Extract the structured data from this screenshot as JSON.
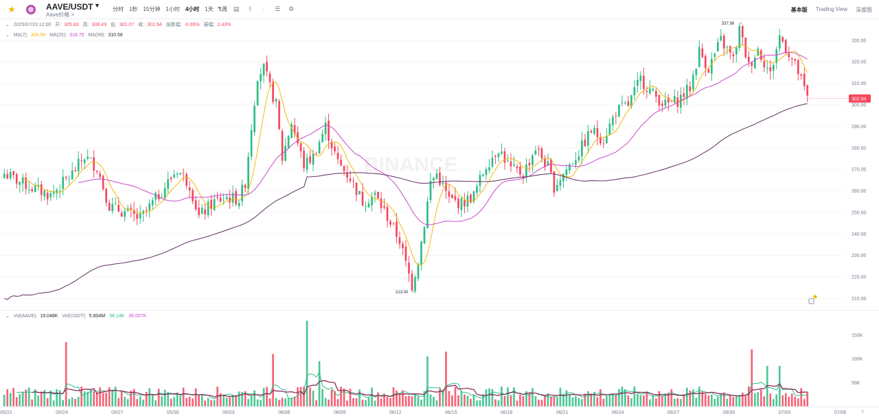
{
  "header": {
    "pair": "AAVE/USDT",
    "subtitle": "Aave价格 >",
    "intervals": [
      "分时",
      "1秒",
      "15分钟",
      "1小时",
      "4小时",
      "1天",
      "1周"
    ],
    "active_interval": "4小时",
    "views": [
      "基本版",
      "Trading View",
      "深度图"
    ],
    "active_view": "基本版",
    "tool_icons": [
      "indicator-icon",
      "draw-line-icon",
      "candle-type-icon",
      "layout-icon",
      "settings-icon"
    ]
  },
  "ohlc": {
    "date": "2025/07/23 12:00",
    "open_label": "开:",
    "open": "305.83",
    "high_label": "高:",
    "high": "308.49",
    "low_label": "低:",
    "low": "301.07",
    "close_label": "收:",
    "close": "302.94",
    "change_label": "涨跌幅:",
    "change": "-0.95%",
    "amp_label": "振幅:",
    "amp": "2.43%"
  },
  "ma": {
    "ma7_label": "MA(7):",
    "ma7": "306.96",
    "ma25_label": "MA(25):",
    "ma25": "318.75",
    "ma99_label": "MA(99):",
    "ma99": "310.56"
  },
  "vol": {
    "base_label": "Vol(AAVE):",
    "base": "19.048K",
    "quote_label": "Vol(USDT):",
    "quote": "5.804M",
    "v1": "38.14K",
    "v2": "36.007K"
  },
  "watermark": "BINANCE",
  "colors": {
    "up": "#2ebd85",
    "down": "#f6465d",
    "ma7": "#f0b90b",
    "ma25": "#c848c8",
    "ma99": "#6c3f6c",
    "vol_ma1": "#2ebd85",
    "vol_ma2": "#8b2a57"
  },
  "chart_data": {
    "type": "candlestick",
    "interval": "4h",
    "x_tick_labels": [
      "05/21",
      "05/24",
      "05/27",
      "05/30",
      "06/03",
      "06/06",
      "06/09",
      "06/12",
      "06/15",
      "06/18",
      "06/21",
      "06/24",
      "06/27",
      "06/30",
      "07/03",
      "07/06",
      "07/09",
      "07/12",
      "07/15",
      "07/18",
      "07/21",
      "07/24"
    ],
    "y_tick_labels": [
      "210.00",
      "220.00",
      "230.00",
      "240.00",
      "250.00",
      "260.00",
      "270.00",
      "280.00",
      "290.00",
      "300.00",
      "310.00",
      "320.00",
      "330.00"
    ],
    "ylim": [
      206,
      336
    ],
    "last_price": "302.94",
    "high_annotation": "337.98",
    "low_annotation": "213.00",
    "price_keypoints": [
      [
        0,
        268
      ],
      [
        8,
        262
      ],
      [
        15,
        258
      ],
      [
        22,
        268
      ],
      [
        26,
        276
      ],
      [
        30,
        271
      ],
      [
        34,
        253
      ],
      [
        44,
        247
      ],
      [
        50,
        258
      ],
      [
        56,
        270
      ],
      [
        60,
        263
      ],
      [
        63,
        248
      ],
      [
        68,
        255
      ],
      [
        72,
        257
      ],
      [
        76,
        256
      ],
      [
        78,
        264
      ],
      [
        80,
        290
      ],
      [
        82,
        314
      ],
      [
        84,
        317
      ],
      [
        86,
        308
      ],
      [
        88,
        300
      ],
      [
        90,
        275
      ],
      [
        93,
        292
      ],
      [
        97,
        272
      ],
      [
        100,
        276
      ],
      [
        104,
        290
      ],
      [
        108,
        273
      ],
      [
        112,
        266
      ],
      [
        116,
        255
      ],
      [
        120,
        258
      ],
      [
        124,
        248
      ],
      [
        128,
        237
      ],
      [
        130,
        226
      ],
      [
        132,
        216
      ],
      [
        134,
        228
      ],
      [
        136,
        245
      ],
      [
        138,
        264
      ],
      [
        140,
        268
      ],
      [
        144,
        256
      ],
      [
        148,
        254
      ],
      [
        152,
        258
      ],
      [
        156,
        272
      ],
      [
        160,
        280
      ],
      [
        164,
        270
      ],
      [
        168,
        268
      ],
      [
        172,
        280
      ],
      [
        176,
        271
      ],
      [
        178,
        262
      ],
      [
        182,
        270
      ],
      [
        186,
        278
      ],
      [
        190,
        288
      ],
      [
        194,
        284
      ],
      [
        198,
        297
      ],
      [
        202,
        300
      ],
      [
        206,
        312
      ],
      [
        210,
        305
      ],
      [
        214,
        300
      ],
      [
        218,
        302
      ],
      [
        222,
        308
      ],
      [
        225,
        325
      ],
      [
        228,
        317
      ],
      [
        232,
        330
      ],
      [
        236,
        321
      ],
      [
        238,
        335
      ],
      [
        241,
        318
      ],
      [
        244,
        326
      ],
      [
        248,
        314
      ],
      [
        251,
        332
      ],
      [
        254,
        324
      ],
      [
        257,
        315
      ],
      [
        260,
        303
      ]
    ],
    "volume_axis": [
      "50K",
      "100K",
      "150K"
    ],
    "volume_ylim": [
      0,
      180000
    ],
    "volume_spikes": [
      [
        20,
        135000
      ],
      [
        87,
        110000
      ],
      [
        98,
        180000
      ],
      [
        102,
        95000
      ],
      [
        137,
        105000
      ],
      [
        143,
        115000
      ],
      [
        242,
        120000
      ],
      [
        247,
        85000
      ],
      [
        251,
        85000
      ]
    ]
  }
}
